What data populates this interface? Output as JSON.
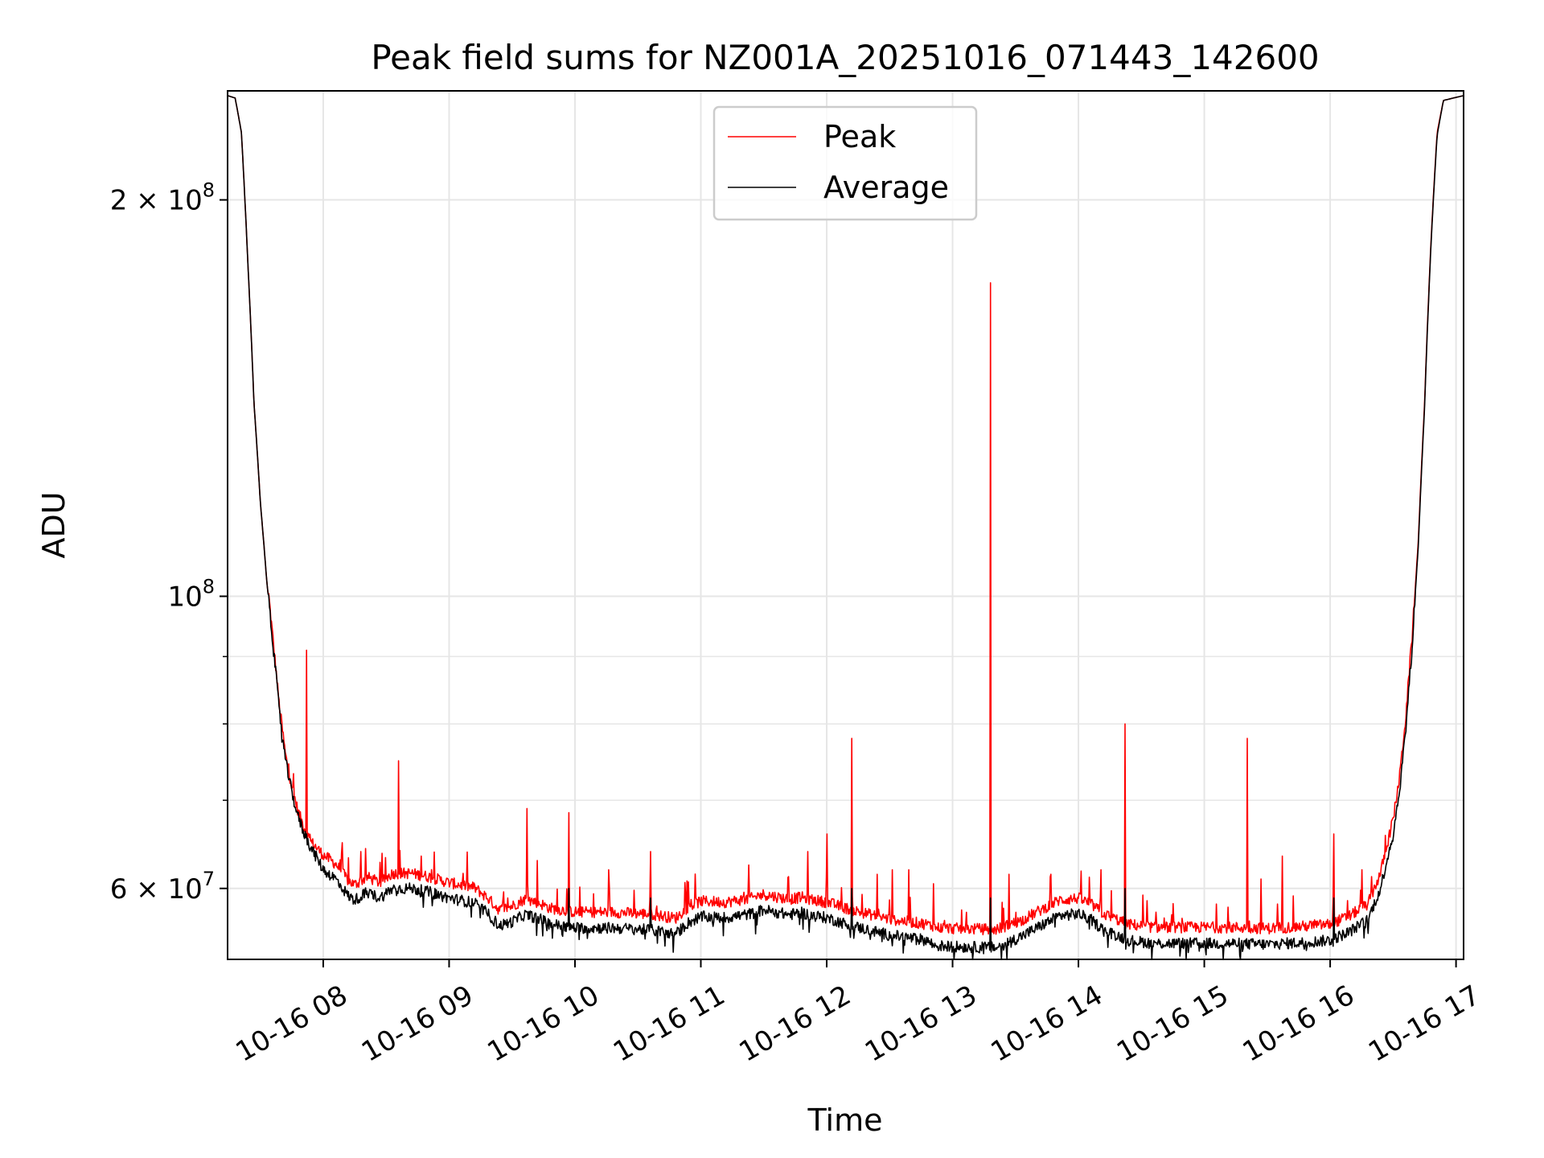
{
  "chart_data": {
    "type": "line",
    "title": "Peak field sums for NZ001A_20251016_071443_142600",
    "xlabel": "Time",
    "ylabel": "ADU",
    "yscale": "log",
    "xlim": [
      7.24,
      17.06
    ],
    "ylim": [
      53000000,
      242000000
    ],
    "grid": true,
    "legend_loc": "upper center",
    "x_ticks": [
      {
        "value": 8,
        "label": "10-16 08"
      },
      {
        "value": 9,
        "label": "10-16 09"
      },
      {
        "value": 10,
        "label": "10-16 10"
      },
      {
        "value": 11,
        "label": "10-16 11"
      },
      {
        "value": 12,
        "label": "10-16 12"
      },
      {
        "value": 13,
        "label": "10-16 13"
      },
      {
        "value": 14,
        "label": "10-16 14"
      },
      {
        "value": 15,
        "label": "10-16 15"
      },
      {
        "value": 16,
        "label": "10-16 16"
      },
      {
        "value": 17,
        "label": "10-16 17"
      }
    ],
    "y_major_ticks": [
      {
        "value": 60000000,
        "mant": "6",
        "label": "6 × 10⁷"
      },
      {
        "value": 100000000,
        "mant": "",
        "label": "10⁸"
      },
      {
        "value": 200000000,
        "mant": "2",
        "label": "2 × 10⁸"
      }
    ],
    "y_minor_ticks": [
      70000000,
      80000000,
      90000000
    ],
    "series": [
      {
        "name": "Peak",
        "color": "#ff0000",
        "baseline": [
          [
            7.24,
            240
          ],
          [
            7.3,
            239
          ],
          [
            7.35,
            225
          ],
          [
            7.4,
            180
          ],
          [
            7.45,
            140
          ],
          [
            7.5,
            118
          ],
          [
            7.55,
            103
          ],
          [
            7.6,
            92
          ],
          [
            7.65,
            82
          ],
          [
            7.7,
            75
          ],
          [
            7.75,
            71
          ],
          [
            7.8,
            68
          ],
          [
            7.85,
            66
          ],
          [
            7.9,
            64.5
          ],
          [
            8.0,
            63
          ],
          [
            8.1,
            62
          ],
          [
            8.2,
            60.2
          ],
          [
            8.25,
            59.8
          ],
          [
            8.35,
            60.6
          ],
          [
            8.45,
            60.0
          ],
          [
            8.55,
            61
          ],
          [
            8.7,
            61
          ],
          [
            8.85,
            60.6
          ],
          [
            9.0,
            60.0
          ],
          [
            9.2,
            59.5
          ],
          [
            9.3,
            58.5
          ],
          [
            9.4,
            57.2
          ],
          [
            9.5,
            57.6
          ],
          [
            9.6,
            58.3
          ],
          [
            9.7,
            58.0
          ],
          [
            9.8,
            57.4
          ],
          [
            9.9,
            57.2
          ],
          [
            10.0,
            57.0
          ],
          [
            10.3,
            57.0
          ],
          [
            10.6,
            56.8
          ],
          [
            10.8,
            56.4
          ],
          [
            10.9,
            57.5
          ],
          [
            11.0,
            58.1
          ],
          [
            11.2,
            58.0
          ],
          [
            11.4,
            58.4
          ],
          [
            11.5,
            58.8
          ],
          [
            11.7,
            58.3
          ],
          [
            11.8,
            58.5
          ],
          [
            11.9,
            58.2
          ],
          [
            12.0,
            58.0
          ],
          [
            12.2,
            57.2
          ],
          [
            12.5,
            56.3
          ],
          [
            12.8,
            55.8
          ],
          [
            12.85,
            55.5
          ],
          [
            13.0,
            55.4
          ],
          [
            13.35,
            55.3
          ],
          [
            13.55,
            56.2
          ],
          [
            13.7,
            57.2
          ],
          [
            13.85,
            58.2
          ],
          [
            14.0,
            58.4
          ],
          [
            14.1,
            57.8
          ],
          [
            14.2,
            56.8
          ],
          [
            14.4,
            55.8
          ],
          [
            14.6,
            55.5
          ],
          [
            14.9,
            55.5
          ],
          [
            15.0,
            55.5
          ],
          [
            15.2,
            55.5
          ],
          [
            15.5,
            55.4
          ],
          [
            15.8,
            55.6
          ],
          [
            16.0,
            55.8
          ],
          [
            16.15,
            56.6
          ],
          [
            16.3,
            57.8
          ],
          [
            16.4,
            61
          ],
          [
            16.5,
            67
          ],
          [
            16.55,
            72
          ],
          [
            16.6,
            80
          ],
          [
            16.65,
            92
          ],
          [
            16.7,
            110
          ],
          [
            16.75,
            140
          ],
          [
            16.8,
            185
          ],
          [
            16.85,
            225
          ],
          [
            16.9,
            238
          ],
          [
            17.06,
            240
          ]
        ],
        "spikes": [
          [
            7.87,
            91
          ],
          [
            8.6,
            75
          ],
          [
            9.62,
            69
          ],
          [
            9.95,
            68.5
          ],
          [
            10.6,
            64
          ],
          [
            11.85,
            64
          ],
          [
            12.0,
            66
          ],
          [
            12.2,
            78
          ],
          [
            12.52,
            62
          ],
          [
            12.65,
            62
          ],
          [
            12.85,
            60.5
          ],
          [
            13.3,
            173
          ],
          [
            13.45,
            61.5
          ],
          [
            14.37,
            80
          ],
          [
            15.34,
            78
          ],
          [
            15.62,
            63.5
          ],
          [
            16.03,
            66
          ],
          [
            8.15,
            65
          ],
          [
            8.3,
            64
          ],
          [
            8.78,
            63.5
          ],
          [
            9.7,
            63
          ],
          [
            10.27,
            62
          ],
          [
            11.38,
            62.5
          ],
          [
            12.4,
            61.5
          ],
          [
            13.78,
            61.5
          ],
          [
            14.18,
            62
          ],
          [
            15.45,
            61
          ],
          [
            16.25,
            62
          ]
        ]
      },
      {
        "name": "Average",
        "color": "#000000",
        "baseline": [
          [
            7.24,
            240
          ],
          [
            7.3,
            239
          ],
          [
            7.35,
            225
          ],
          [
            7.4,
            180
          ],
          [
            7.45,
            140
          ],
          [
            7.5,
            118
          ],
          [
            7.55,
            103
          ],
          [
            7.6,
            92
          ],
          [
            7.65,
            82
          ],
          [
            7.7,
            75
          ],
          [
            7.75,
            71
          ],
          [
            7.8,
            68
          ],
          [
            7.85,
            66
          ],
          [
            7.9,
            64.5
          ],
          [
            8.0,
            62
          ],
          [
            8.1,
            61
          ],
          [
            8.2,
            59.2
          ],
          [
            8.25,
            58.8
          ],
          [
            8.35,
            59.6
          ],
          [
            8.45,
            59.0
          ],
          [
            8.55,
            60
          ],
          [
            8.7,
            60
          ],
          [
            8.85,
            59.6
          ],
          [
            9.0,
            59.0
          ],
          [
            9.2,
            58.5
          ],
          [
            9.3,
            57.5
          ],
          [
            9.4,
            56.2
          ],
          [
            9.5,
            56.6
          ],
          [
            9.6,
            57.3
          ],
          [
            9.7,
            57.0
          ],
          [
            9.8,
            56.4
          ],
          [
            9.9,
            56.2
          ],
          [
            10.0,
            56.0
          ],
          [
            10.3,
            56.0
          ],
          [
            10.6,
            55.8
          ],
          [
            10.8,
            55.4
          ],
          [
            10.9,
            56.5
          ],
          [
            11.0,
            57.1
          ],
          [
            11.2,
            57.0
          ],
          [
            11.4,
            57.4
          ],
          [
            11.5,
            57.8
          ],
          [
            11.7,
            57.3
          ],
          [
            11.8,
            57.5
          ],
          [
            11.9,
            57.2
          ],
          [
            12.0,
            57.0
          ],
          [
            12.2,
            56.2
          ],
          [
            12.5,
            55.3
          ],
          [
            12.8,
            54.8
          ],
          [
            12.85,
            54.3
          ],
          [
            13.0,
            54.2
          ],
          [
            13.35,
            54.1
          ],
          [
            13.55,
            55.2
          ],
          [
            13.7,
            56.2
          ],
          [
            13.85,
            57.2
          ],
          [
            14.0,
            57.4
          ],
          [
            14.1,
            56.8
          ],
          [
            14.2,
            55.8
          ],
          [
            14.4,
            54.8
          ],
          [
            14.6,
            54.5
          ],
          [
            14.9,
            54.5
          ],
          [
            15.0,
            54.5
          ],
          [
            15.2,
            54.5
          ],
          [
            15.5,
            54.4
          ],
          [
            15.8,
            54.6
          ],
          [
            16.0,
            54.8
          ],
          [
            16.15,
            55.6
          ],
          [
            16.3,
            56.8
          ],
          [
            16.4,
            60
          ],
          [
            16.5,
            66
          ],
          [
            16.55,
            71
          ],
          [
            16.6,
            79
          ],
          [
            16.65,
            91
          ],
          [
            16.7,
            109
          ],
          [
            16.75,
            139
          ],
          [
            16.8,
            184
          ],
          [
            16.85,
            224
          ],
          [
            16.9,
            238
          ],
          [
            17.06,
            240
          ]
        ],
        "spikes": [
          [
            7.87,
            66
          ],
          [
            9.95,
            60
          ],
          [
            10.6,
            59
          ],
          [
            12.2,
            60
          ],
          [
            13.3,
            59
          ],
          [
            14.37,
            60
          ],
          [
            16.03,
            59
          ]
        ]
      }
    ]
  }
}
